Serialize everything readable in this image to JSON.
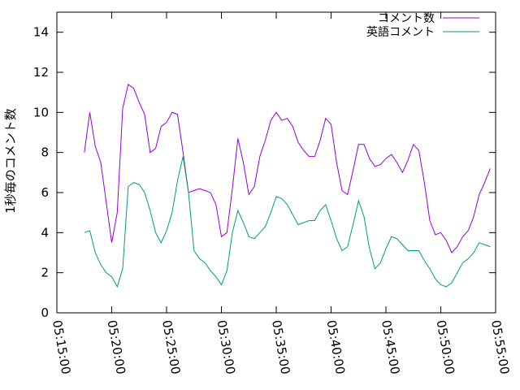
{
  "chart_data": {
    "type": "line",
    "ylabel": "1秒毎のコメント数",
    "xlabel": "",
    "xlim": [
      "05:15:00",
      "05:55:00"
    ],
    "ylim": [
      0,
      15
    ],
    "x_ticks": [
      "05:15:00",
      "05:20:00",
      "05:25:00",
      "05:30:00",
      "05:35:00",
      "05:40:00",
      "05:45:00",
      "05:50:00",
      "05:55:00"
    ],
    "y_ticks": [
      0,
      2,
      4,
      6,
      8,
      10,
      12,
      14
    ],
    "grid": false,
    "legend": "top-right",
    "x": [
      "05:17:30",
      "05:18:00",
      "05:18:30",
      "05:19:00",
      "05:19:30",
      "05:20:00",
      "05:20:30",
      "05:21:00",
      "05:21:30",
      "05:22:00",
      "05:22:30",
      "05:23:00",
      "05:23:30",
      "05:24:00",
      "05:24:30",
      "05:25:00",
      "05:25:30",
      "05:26:00",
      "05:26:30",
      "05:27:00",
      "05:27:30",
      "05:28:00",
      "05:28:30",
      "05:29:00",
      "05:29:30",
      "05:30:00",
      "05:30:30",
      "05:31:00",
      "05:31:30",
      "05:32:00",
      "05:32:30",
      "05:33:00",
      "05:33:30",
      "05:34:00",
      "05:34:30",
      "05:35:00",
      "05:35:30",
      "05:36:00",
      "05:36:30",
      "05:37:00",
      "05:37:30",
      "05:38:00",
      "05:38:30",
      "05:39:00",
      "05:39:30",
      "05:40:00",
      "05:40:30",
      "05:41:00",
      "05:41:30",
      "05:42:00",
      "05:42:30",
      "05:43:00",
      "05:43:30",
      "05:44:00",
      "05:44:30",
      "05:45:00",
      "05:45:30",
      "05:46:00",
      "05:46:30",
      "05:47:00",
      "05:47:30",
      "05:48:00",
      "05:48:30",
      "05:49:00",
      "05:49:30",
      "05:50:00",
      "05:50:30",
      "05:51:00",
      "05:51:30",
      "05:52:00",
      "05:52:30",
      "05:53:00",
      "05:53:30",
      "05:54:00",
      "05:54:30"
    ],
    "series": [
      {
        "name": "コメント数",
        "color": "#9400d3",
        "values": [
          8.0,
          10.0,
          8.3,
          7.5,
          5.5,
          3.5,
          5.0,
          10.2,
          11.4,
          11.2,
          10.5,
          9.9,
          8.0,
          8.2,
          9.3,
          9.5,
          10.0,
          9.9,
          8.0,
          6.0,
          6.1,
          6.2,
          6.1,
          6.0,
          5.4,
          3.8,
          4.0,
          6.2,
          8.7,
          7.5,
          5.9,
          6.3,
          7.8,
          8.6,
          9.6,
          10.0,
          9.6,
          9.7,
          9.3,
          8.5,
          8.1,
          7.8,
          7.8,
          8.6,
          9.7,
          9.4,
          7.5,
          6.1,
          5.9,
          7.1,
          8.4,
          8.4,
          7.7,
          7.3,
          7.4,
          7.7,
          7.9,
          7.5,
          7.0,
          7.6,
          8.4,
          8.1,
          6.5,
          4.6,
          3.9,
          4.0,
          3.6,
          3.0,
          3.3,
          3.8,
          4.1,
          4.8,
          5.9,
          6.5,
          7.2
        ]
      },
      {
        "name": "英語コメント",
        "color": "#009e73",
        "values": [
          4.0,
          4.1,
          3.0,
          2.4,
          2.0,
          1.8,
          1.3,
          2.2,
          6.3,
          6.5,
          6.4,
          6.0,
          5.1,
          4.0,
          3.5,
          4.1,
          5.0,
          6.6,
          7.8,
          6.0,
          3.1,
          2.7,
          2.5,
          2.1,
          1.8,
          1.4,
          2.1,
          4.0,
          5.1,
          4.5,
          3.8,
          3.7,
          4.0,
          4.3,
          5.0,
          5.8,
          5.7,
          5.4,
          4.9,
          4.4,
          4.5,
          4.6,
          4.6,
          5.1,
          5.4,
          4.6,
          3.7,
          3.1,
          3.3,
          4.4,
          5.6,
          4.8,
          3.2,
          2.2,
          2.5,
          3.2,
          3.8,
          3.7,
          3.4,
          3.1,
          3.1,
          3.1,
          2.6,
          2.2,
          1.7,
          1.4,
          1.3,
          1.5,
          2.0,
          2.5,
          2.7,
          3.0,
          3.5,
          3.4,
          3.3
        ]
      }
    ]
  }
}
